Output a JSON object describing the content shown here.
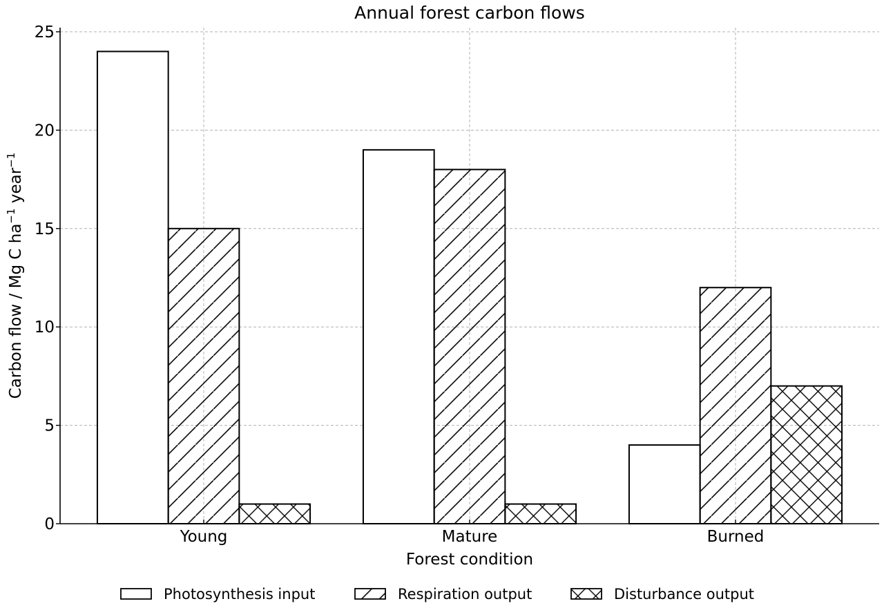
{
  "chart_data": {
    "type": "bar",
    "title": "Annual forest carbon flows",
    "xlabel": "Forest condition",
    "ylabel": "Carbon flow / Mg C ha",
    "ylabel_unit_1": "−1",
    "ylabel_unit_mid": " year",
    "ylabel_unit_2": "−1",
    "categories": [
      "Young",
      "Mature",
      "Burned"
    ],
    "series": [
      {
        "name": "Photosynthesis input",
        "values": [
          24,
          19,
          4
        ],
        "pattern": "none"
      },
      {
        "name": "Respiration output",
        "values": [
          15,
          18,
          12
        ],
        "pattern": "diagonal"
      },
      {
        "name": "Disturbance output",
        "values": [
          1,
          1,
          7
        ],
        "pattern": "crosshatch"
      }
    ],
    "ylim": [
      0,
      25
    ],
    "yticks": [
      0,
      5,
      10,
      15,
      20,
      25
    ],
    "grid": true,
    "legend_position": "bottom",
    "colors": {
      "edge": "#000000",
      "fill": "#ffffff",
      "grid": "#b0b0b0"
    }
  }
}
